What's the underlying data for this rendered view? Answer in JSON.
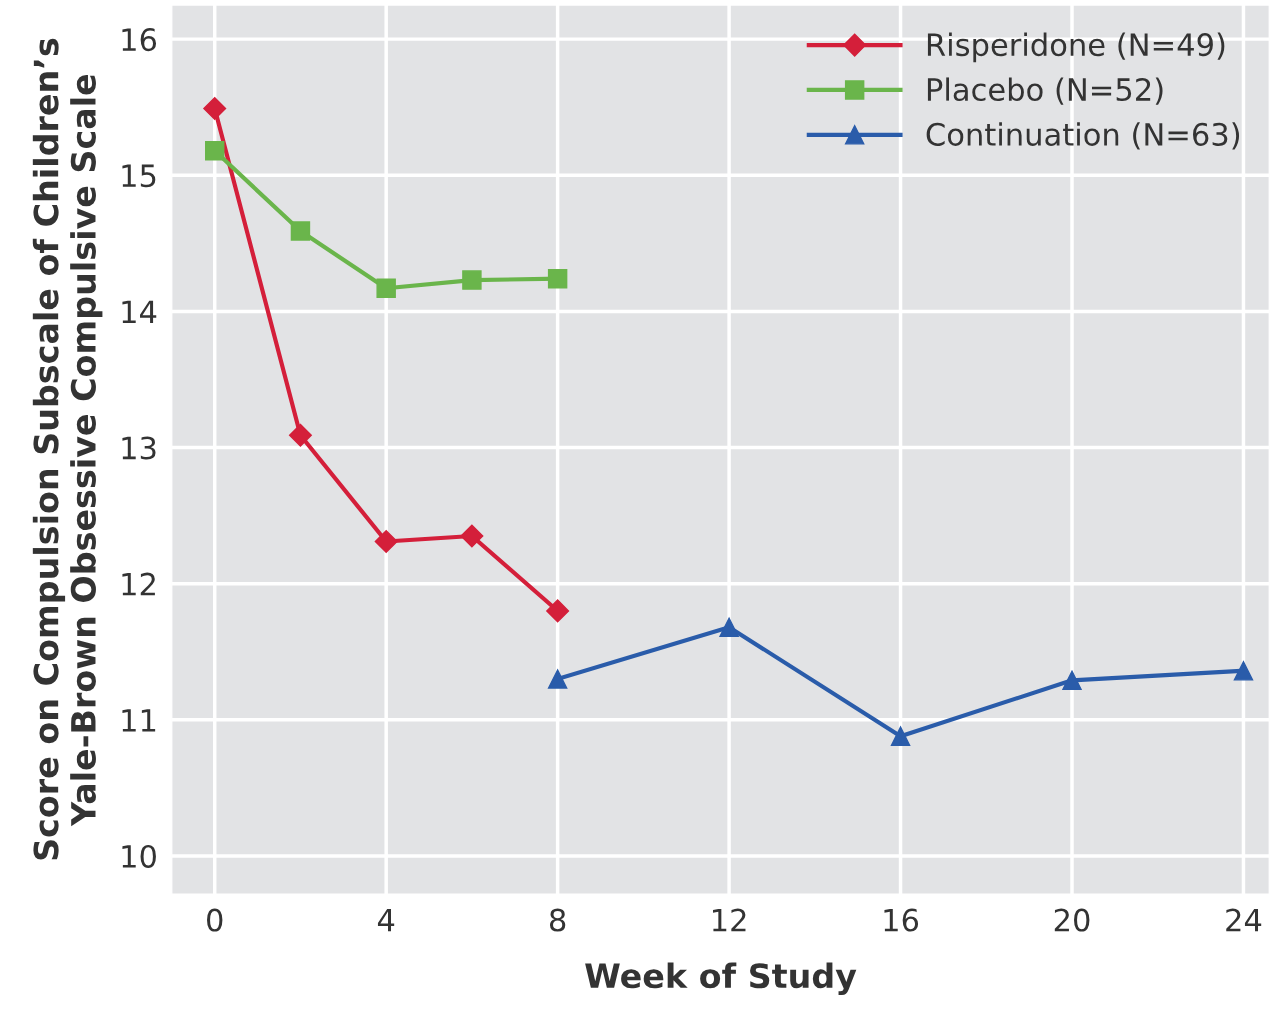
{
  "chart_data": {
    "type": "line",
    "xlabel": "Week of Study",
    "ylabel": "Score on Compulsion Subscale of Children’s\nYale-Brown Obsessive Compulsive Scale",
    "xlim": [
      -1,
      24.6
    ],
    "ylim": [
      9.72,
      16.25
    ],
    "xticks": [
      0,
      4,
      8,
      12,
      16,
      20,
      24
    ],
    "yticks": [
      10,
      11,
      12,
      13,
      14,
      15,
      16
    ],
    "grid": true,
    "legend": "top right",
    "series": [
      {
        "name": "Risperidone (N=49)",
        "color": "#d41f3a",
        "marker": "diamond",
        "x": [
          0,
          2,
          4,
          6,
          8
        ],
        "values": [
          15.49,
          13.09,
          12.31,
          12.35,
          11.8
        ]
      },
      {
        "name": "Placebo (N=52)",
        "color": "#6ab54b",
        "marker": "square",
        "x": [
          0,
          2,
          4,
          6,
          8
        ],
        "values": [
          15.18,
          14.59,
          14.17,
          14.23,
          14.24
        ]
      },
      {
        "name": "Continuation (N=63)",
        "color": "#2a5caa",
        "marker": "triangle",
        "x": [
          8,
          12,
          16,
          20,
          24
        ],
        "values": [
          11.3,
          11.68,
          10.88,
          11.29,
          11.36
        ]
      }
    ]
  }
}
